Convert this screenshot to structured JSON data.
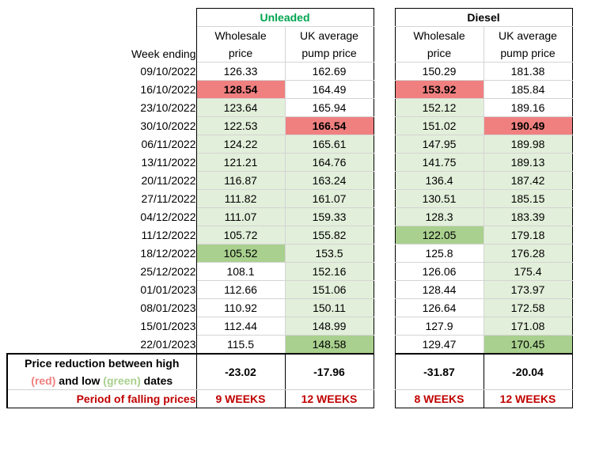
{
  "groups": {
    "unleaded": "Unleaded",
    "diesel": "Diesel"
  },
  "headers": {
    "week": "Week ending",
    "wholesale": "Wholesale\nprice",
    "pump": "UK average\npump price"
  },
  "rows": [
    {
      "week": "09/10/2022",
      "uw": "126.33",
      "up": "162.69",
      "dw": "150.29",
      "dp": "181.38",
      "s": [
        "",
        "",
        "",
        ""
      ]
    },
    {
      "week": "16/10/2022",
      "uw": "128.54",
      "up": "164.49",
      "dw": "153.92",
      "dp": "185.84",
      "s": [
        "hi",
        "",
        "hi",
        ""
      ]
    },
    {
      "week": "23/10/2022",
      "uw": "123.64",
      "up": "165.94",
      "dw": "152.12",
      "dp": "189.16",
      "s": [
        "lgreen",
        "",
        "lgreen",
        ""
      ]
    },
    {
      "week": "30/10/2022",
      "uw": "122.53",
      "up": "166.54",
      "dw": "151.02",
      "dp": "190.49",
      "s": [
        "lgreen",
        "hi",
        "lgreen",
        "hi"
      ]
    },
    {
      "week": "06/11/2022",
      "uw": "124.22",
      "up": "165.61",
      "dw": "147.95",
      "dp": "189.98",
      "s": [
        "lgreen",
        "lgreen",
        "lgreen",
        "lgreen"
      ]
    },
    {
      "week": "13/11/2022",
      "uw": "121.21",
      "up": "164.76",
      "dw": "141.75",
      "dp": "189.13",
      "s": [
        "lgreen",
        "lgreen",
        "lgreen",
        "lgreen"
      ]
    },
    {
      "week": "20/11/2022",
      "uw": "116.87",
      "up": "163.24",
      "dw": "136.4",
      "dp": "187.42",
      "s": [
        "lgreen",
        "lgreen",
        "lgreen",
        "lgreen"
      ]
    },
    {
      "week": "27/11/2022",
      "uw": "111.82",
      "up": "161.07",
      "dw": "130.51",
      "dp": "185.15",
      "s": [
        "lgreen",
        "lgreen",
        "lgreen",
        "lgreen"
      ]
    },
    {
      "week": "04/12/2022",
      "uw": "111.07",
      "up": "159.33",
      "dw": "128.3",
      "dp": "183.39",
      "s": [
        "lgreen",
        "lgreen",
        "lgreen",
        "lgreen"
      ]
    },
    {
      "week": "11/12/2022",
      "uw": "105.72",
      "up": "155.82",
      "dw": "122.05",
      "dp": "179.18",
      "s": [
        "lgreen",
        "lgreen",
        "dgreen",
        "lgreen"
      ]
    },
    {
      "week": "18/12/2022",
      "uw": "105.52",
      "up": "153.5",
      "dw": "125.8",
      "dp": "176.28",
      "s": [
        "dgreen",
        "lgreen",
        "",
        "lgreen"
      ]
    },
    {
      "week": "25/12/2022",
      "uw": "108.1",
      "up": "152.16",
      "dw": "126.06",
      "dp": "175.4",
      "s": [
        "",
        "lgreen",
        "",
        "lgreen"
      ]
    },
    {
      "week": "01/01/2023",
      "uw": "112.66",
      "up": "151.06",
      "dw": "128.44",
      "dp": "173.97",
      "s": [
        "",
        "lgreen",
        "",
        "lgreen"
      ]
    },
    {
      "week": "08/01/2023",
      "uw": "110.92",
      "up": "150.11",
      "dw": "126.64",
      "dp": "172.58",
      "s": [
        "",
        "lgreen",
        "",
        "lgreen"
      ]
    },
    {
      "week": "15/01/2023",
      "uw": "112.44",
      "up": "148.99",
      "dw": "127.9",
      "dp": "171.08",
      "s": [
        "",
        "lgreen",
        "",
        "lgreen"
      ]
    },
    {
      "week": "22/01/2023",
      "uw": "115.5",
      "up": "148.58",
      "dw": "129.47",
      "dp": "170.45",
      "s": [
        "",
        "dgreen",
        "",
        "dgreen"
      ]
    }
  ],
  "summary": {
    "label_part1": "Price reduction between high",
    "label_red": "(red)",
    "label_mid": " and low ",
    "label_green": "(green)",
    "label_end": " dates",
    "values": [
      "-23.02",
      "-17.96",
      "-31.87",
      "-20.04"
    ]
  },
  "period": {
    "label": "Period of falling prices",
    "values": [
      "9 WEEKS",
      "12 WEEKS",
      "8 WEEKS",
      "12 WEEKS"
    ]
  },
  "colors": {
    "high": "#f08080",
    "low_light": "#e2efda",
    "low_dark": "#a9d08e",
    "accent_red": "#c00000",
    "unleaded_green": "#00a550"
  }
}
